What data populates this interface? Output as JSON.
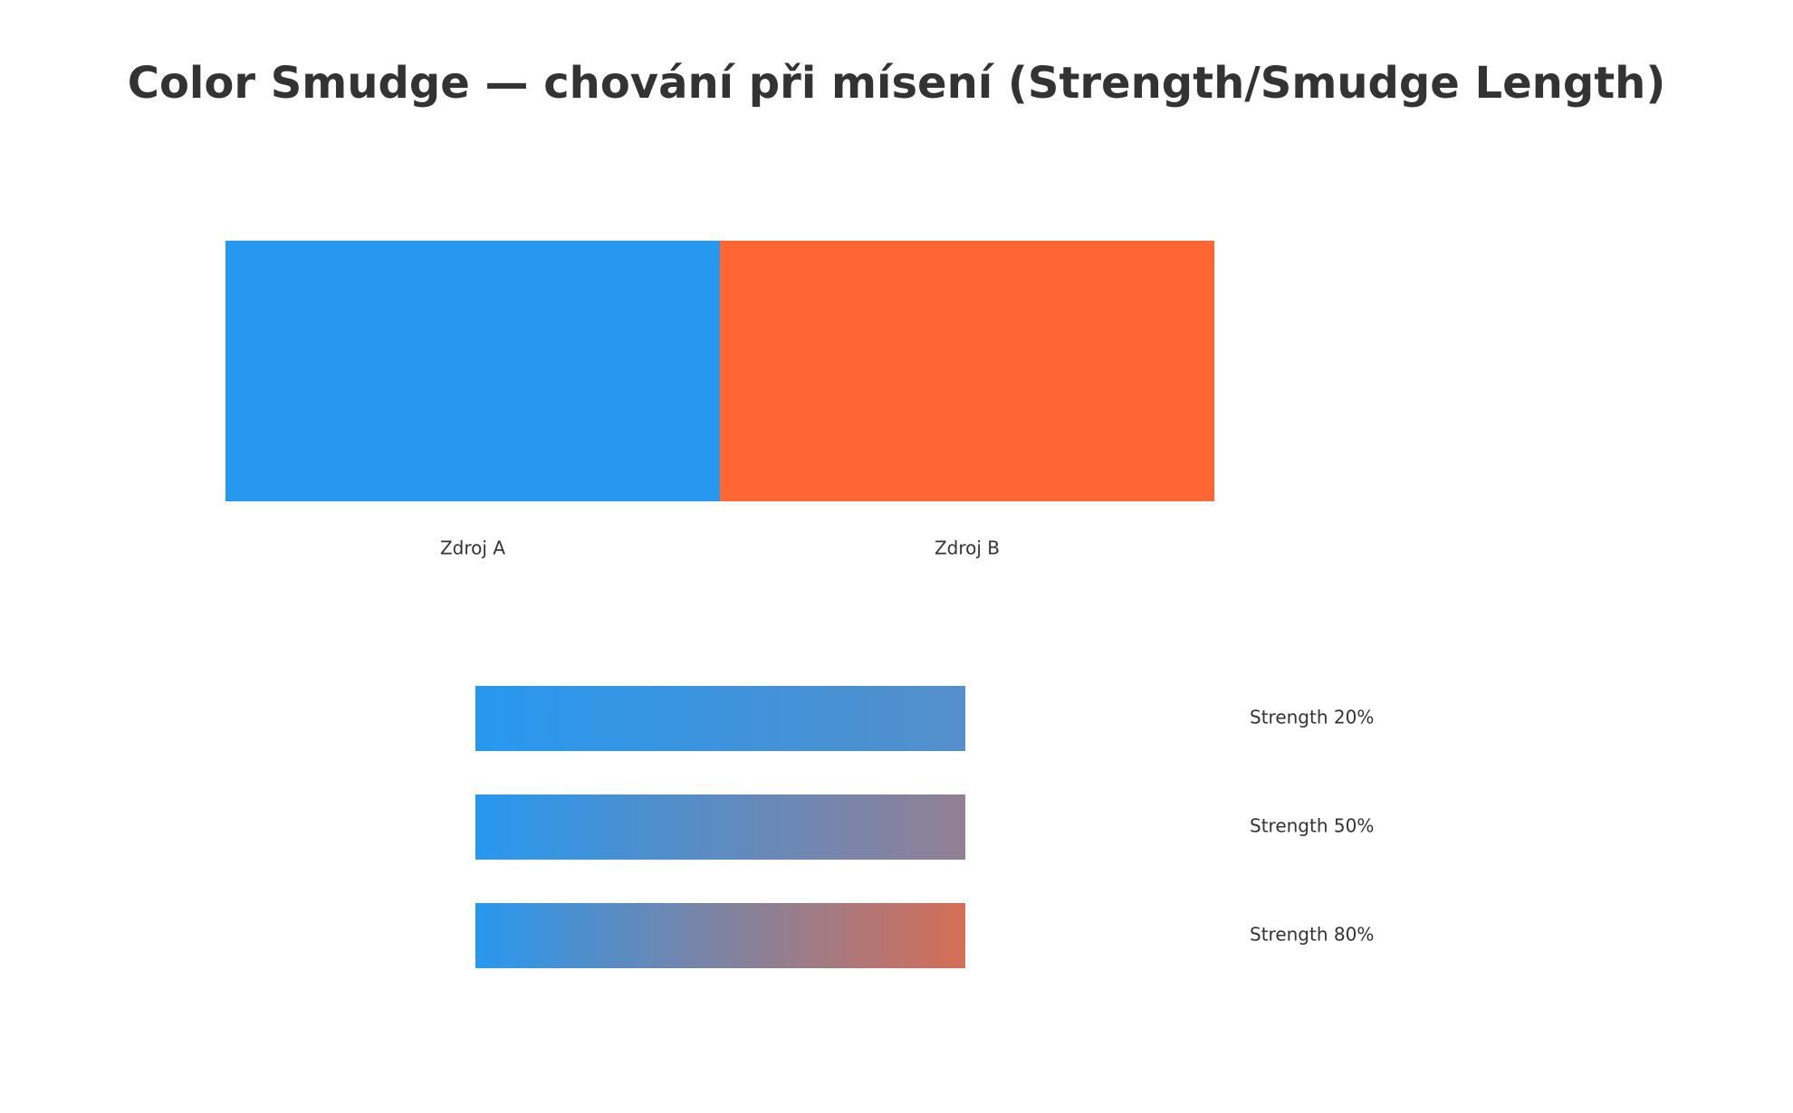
{
  "title": "Color Smudge — chování při mísení (Strength/Smudge Length)",
  "sources": [
    {
      "label": "Zdroj A",
      "color": "#2798ef"
    },
    {
      "label": "Zdroj B",
      "color": "#ff6633"
    }
  ],
  "strips": [
    {
      "label": "Strength 20%",
      "start_color": "#2798ef",
      "end_color": "#548fca"
    },
    {
      "label": "Strength 50%",
      "start_color": "#2798ef",
      "end_color": "#937f94"
    },
    {
      "label": "Strength 80%",
      "start_color": "#2798ef",
      "end_color": "#d56e56"
    }
  ]
}
